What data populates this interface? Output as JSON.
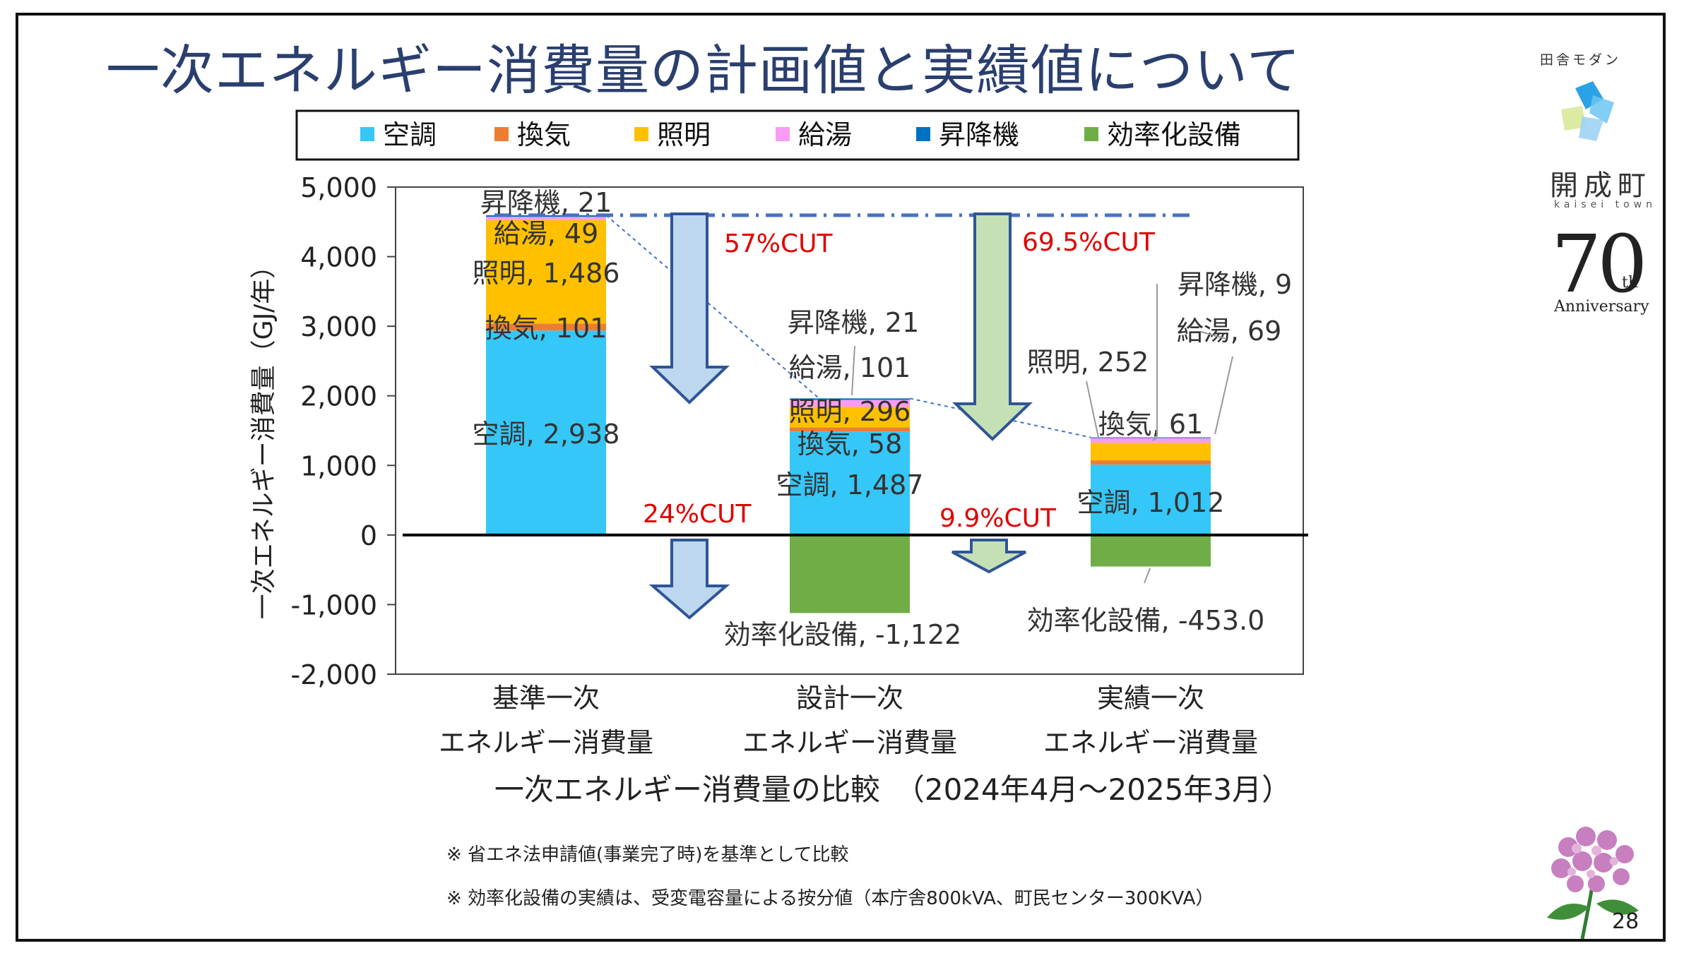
{
  "title": "一次エネルギー消費量の計画値と実績値について",
  "legend": [
    {
      "name": "空調",
      "color": "#35c7f7"
    },
    {
      "name": "換気",
      "color": "#ed7d31"
    },
    {
      "name": "照明",
      "color": "#ffc000"
    },
    {
      "name": "給湯",
      "color": "#f79cf2"
    },
    {
      "name": "昇降機",
      "color": "#0070c0"
    },
    {
      "name": "効率化設備",
      "color": "#70ad47"
    }
  ],
  "chart_data": {
    "type": "bar",
    "stacked": true,
    "title": "",
    "xlabel": "一次エネルギー消費量の比較　（2024年4月～2025年3月）",
    "ylabel": "一次エネルギー消費量（GJ/年）",
    "ylim": [
      -2000,
      5000
    ],
    "yticks": [
      "5,000",
      "4,000",
      "3,000",
      "2,000",
      "1,000",
      "0",
      "-1,000",
      "-2,000"
    ],
    "categories": [
      [
        "基準一次",
        "エネルギー消費量"
      ],
      [
        "設計一次",
        "エネルギー消費量"
      ],
      [
        "実績一次",
        "エネルギー消費量"
      ]
    ],
    "series": [
      {
        "name": "空調",
        "values": [
          2938,
          1487,
          1012
        ]
      },
      {
        "name": "換気",
        "values": [
          101,
          58,
          61
        ]
      },
      {
        "name": "照明",
        "values": [
          1486,
          296,
          252
        ]
      },
      {
        "name": "給湯",
        "values": [
          49,
          101,
          69
        ]
      },
      {
        "name": "昇降機",
        "values": [
          21,
          21,
          9
        ]
      },
      {
        "name": "効率化設備",
        "values": [
          0,
          -1122,
          -453.0
        ]
      }
    ],
    "data_labels": [
      [
        "空調, 2,938",
        "換気, 101",
        "照明, 1,486",
        "給湯, 49",
        "昇降機, 21"
      ],
      [
        "空調, 1,487",
        "換気, 58",
        "照明, 296",
        "給湯, 101",
        "昇降機, 21",
        "効率化設備, -1,122"
      ],
      [
        "空調, 1,012",
        "換気, 61",
        "照明, 252",
        "給湯, 69",
        "昇降機, 9",
        "効率化設備, -453.0"
      ]
    ],
    "annotations": [
      "57%CUT",
      "69.5%CUT",
      "24%CUT",
      "9.9%CUT"
    ],
    "reference_line": 4595
  },
  "notes": [
    "※ 省エネ法申請値(事業完了時)を基準として比較",
    "※ 効率化設備の実績は、受変電容量による按分値（本庁舎800kVA、町民センター300KVA）"
  ],
  "logo": {
    "tagline": "田舎モダン",
    "town": "開成町",
    "romaji": "kaisei town",
    "anniv_num": "70",
    "anniv_th": "th",
    "anniv_text": "Anniversary"
  },
  "page_number": "28"
}
